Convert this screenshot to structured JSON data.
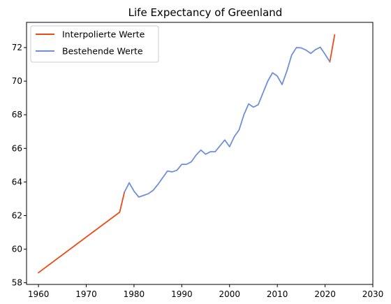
{
  "chart_data": {
    "type": "line",
    "title": "Life Expectancy of Greenland",
    "xlabel": "",
    "ylabel": "",
    "xlim": [
      1957.5,
      2030
    ],
    "ylim": [
      57.9,
      73.5
    ],
    "xticks": [
      1960,
      1970,
      1980,
      1990,
      2000,
      2010,
      2020,
      2030
    ],
    "yticks": [
      58,
      60,
      62,
      64,
      66,
      68,
      70,
      72
    ],
    "grid": false,
    "legend_position": "top-left",
    "series": [
      {
        "name": "Interpolierte Werte",
        "color": "#f04a14",
        "segments": [
          {
            "x": [
              1960,
              1977,
              1978
            ],
            "y": [
              58.6,
              62.2,
              63.4
            ]
          },
          {
            "x": [
              2021,
              2022
            ],
            "y": [
              71.15,
              72.75
            ]
          }
        ]
      },
      {
        "name": "Bestehende Werte",
        "color": "#6f8fdb",
        "segments": [
          {
            "x": [
              1978,
              1979,
              1980,
              1981,
              1982,
              1983,
              1984,
              1985,
              1986,
              1987,
              1988,
              1989,
              1990,
              1991,
              1992,
              1993,
              1994,
              1995,
              1996,
              1997,
              1998,
              1999,
              2000,
              2001,
              2002,
              2003,
              2004,
              2005,
              2006,
              2007,
              2008,
              2009,
              2010,
              2011,
              2012,
              2013,
              2014,
              2015,
              2016,
              2017,
              2018,
              2019,
              2020,
              2021
            ],
            "y": [
              63.4,
              63.95,
              63.45,
              63.1,
              63.2,
              63.3,
              63.5,
              63.85,
              64.25,
              64.65,
              64.6,
              64.7,
              65.05,
              65.05,
              65.2,
              65.6,
              65.9,
              65.65,
              65.8,
              65.8,
              66.15,
              66.5,
              66.1,
              66.7,
              67.1,
              68.0,
              68.65,
              68.45,
              68.6,
              69.3,
              70.0,
              70.5,
              70.3,
              69.8,
              70.6,
              71.55,
              72.0,
              71.98,
              71.85,
              71.65,
              71.88,
              72.02,
              71.6,
              71.15
            ]
          }
        ]
      }
    ]
  }
}
